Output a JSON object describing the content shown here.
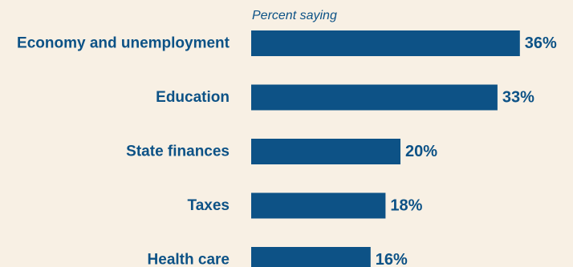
{
  "chart_data": {
    "type": "bar",
    "orientation": "horizontal",
    "subtitle": "Percent saying",
    "categories": [
      "Economy and unemployment",
      "Education",
      "State finances",
      "Taxes",
      "Health care"
    ],
    "values": [
      36,
      33,
      20,
      18,
      16
    ],
    "value_labels": [
      "36%",
      "33%",
      "20%",
      "18%",
      "16%"
    ],
    "unit": "%",
    "xlim": [
      0,
      40
    ],
    "grid": false,
    "legend": "none",
    "colors": {
      "bar": "#0d5286",
      "text": "#0d5286",
      "background": "#f8f0e4"
    }
  }
}
